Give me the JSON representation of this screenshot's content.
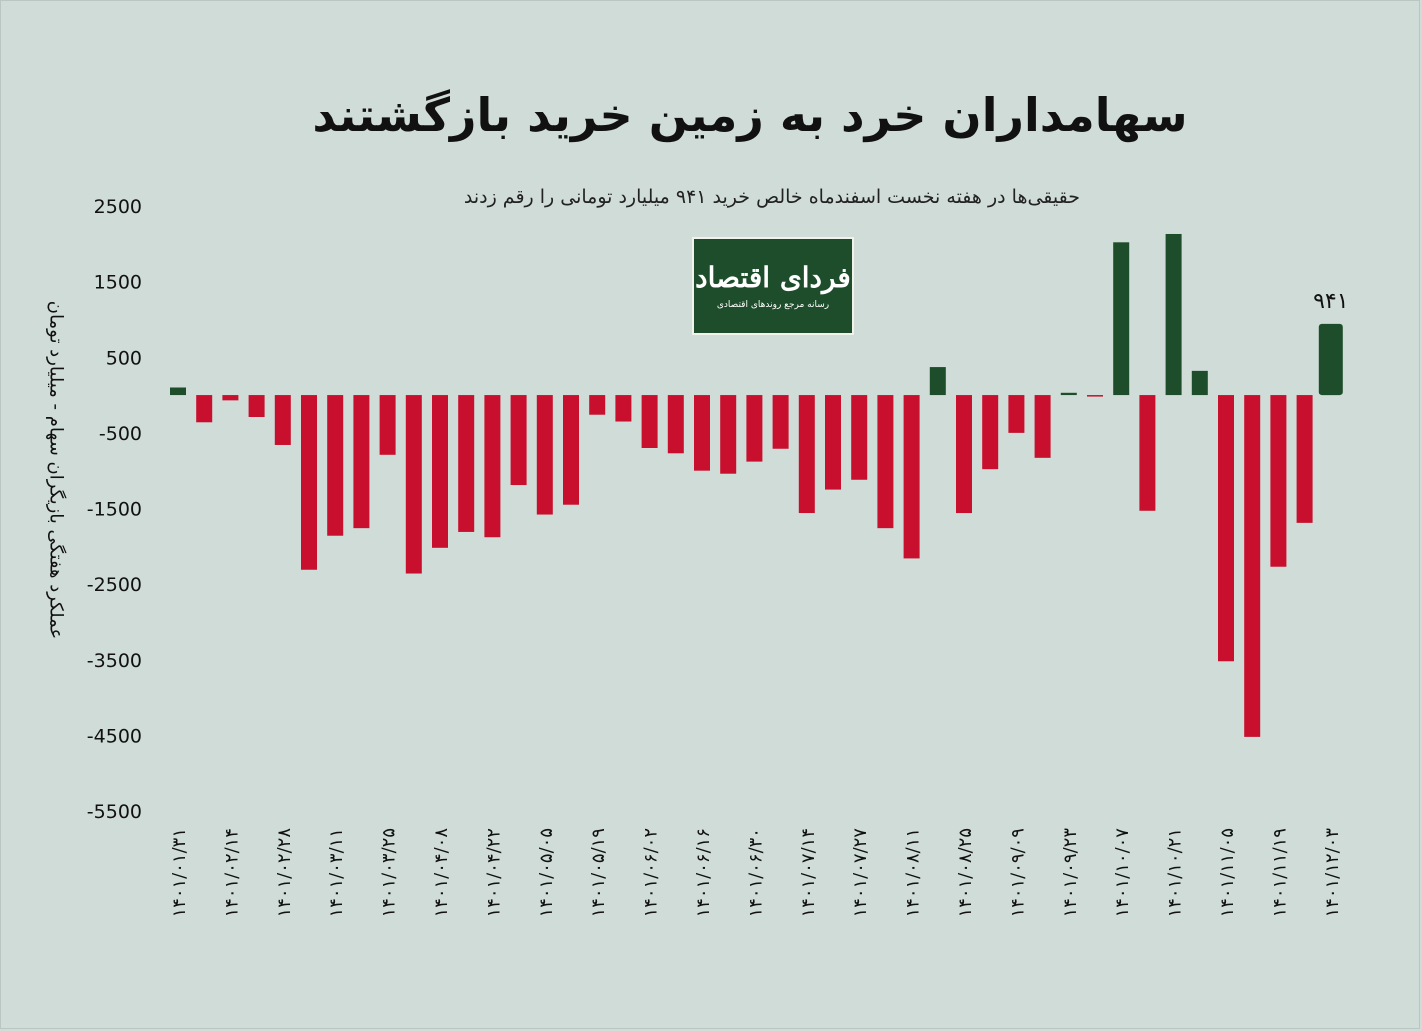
{
  "title": "سهامداران خرد به زمین خرید بازگشتند",
  "subtitle": "حقیقی‌ها در هفته نخست اسفندماه خالص خرید ۹۴۱ میلیارد تومانی را رقم زدند",
  "logo": {
    "name": "فردای اقتصاد",
    "tagline": "رسانه مرجع روندهای اقتصادی"
  },
  "colors": {
    "positive": "#1e4d2b",
    "negative": "#c8102e",
    "background": "#d0dcd8"
  },
  "chart_data": {
    "type": "bar",
    "title": "سهامداران خرد به زمین خرید بازگشتند",
    "ylabel": "عملکرد هفتگی بازیگران سهام - میلیارد تومان",
    "xlabel": "",
    "ylim": [
      -5500,
      2500
    ],
    "yticks": [
      "2500",
      "1500",
      "500",
      "-500",
      "-1500",
      "-2500",
      "-3500",
      "-4500",
      "-5500"
    ],
    "ytick_values": [
      2500,
      1500,
      500,
      -500,
      -1500,
      -2500,
      -3500,
      -4500,
      -5500
    ],
    "categories": [
      "۱۴۰۱/۰۱/۳۱",
      "",
      "۱۴۰۱/۰۲/۱۴",
      "",
      "۱۴۰۱/۰۲/۲۸",
      "",
      "۱۴۰۱/۰۳/۱۱",
      "",
      "۱۴۰۱/۰۳/۲۵",
      "",
      "۱۴۰۱/۰۴/۰۸",
      "",
      "۱۴۰۱/۰۴/۲۲",
      "",
      "۱۴۰۱/۰۵/۰۵",
      "",
      "۱۴۰۱/۰۵/۱۹",
      "",
      "۱۴۰۱/۰۶/۰۲",
      "",
      "۱۴۰۱/۰۶/۱۶",
      "",
      "۱۴۰۱/۰۶/۳۰",
      "",
      "۱۴۰۱/۰۷/۱۴",
      "",
      "۱۴۰۱/۰۷/۲۷",
      "",
      "۱۴۰۱/۰۸/۱۱",
      "",
      "۱۴۰۱/۰۸/۲۵",
      "",
      "۱۴۰۱/۰۹/۰۹",
      "",
      "۱۴۰۱/۰۹/۲۳",
      "",
      "۱۴۰۱/۱۰/۰۷",
      "",
      "۱۴۰۱/۱۰/۲۱",
      "",
      "۱۴۰۱/۱۱/۰۵",
      "",
      "۱۴۰۱/۱۱/۱۹",
      "",
      "۱۴۰۱/۱۲/۰۳"
    ],
    "values": [
      100,
      -360,
      -70,
      -290,
      -660,
      -2310,
      -1860,
      -1760,
      -790,
      -2360,
      -2020,
      -1810,
      -1880,
      -1190,
      -1580,
      -1450,
      -260,
      -350,
      -700,
      -770,
      -1000,
      -1040,
      -880,
      -710,
      -1560,
      -1250,
      -1120,
      -1760,
      -2160,
      370,
      -1560,
      -980,
      -500,
      -830,
      30,
      -20,
      2020,
      -1530,
      2130,
      320,
      -3520,
      -4520,
      -2270,
      -1690,
      941
    ],
    "annotations": [
      {
        "category_index": 44,
        "text": "۹۴۱"
      }
    ],
    "grid": false,
    "legend": "none"
  }
}
